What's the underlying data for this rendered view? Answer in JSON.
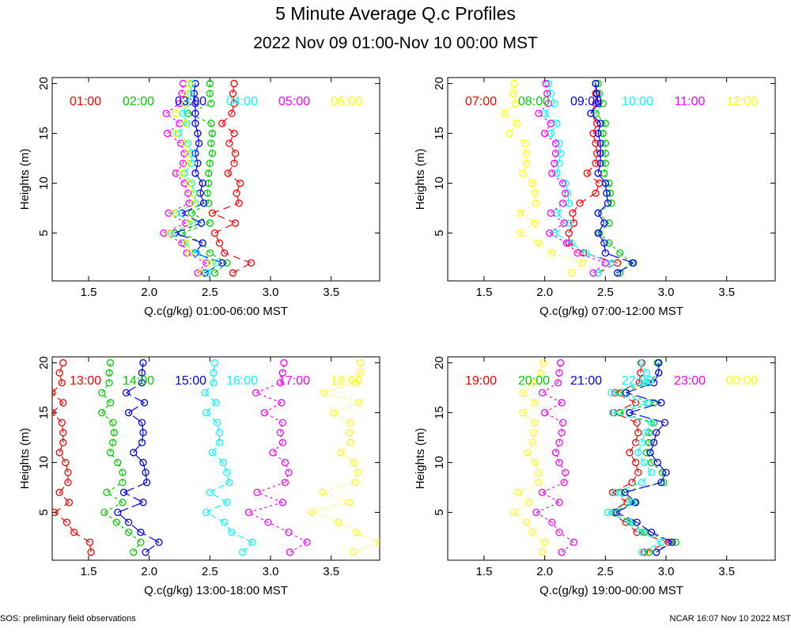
{
  "title": "5 Minute Average Q.c Profiles",
  "subtitle": "2022 Nov 09 01:00-Nov 10 00:00 MST",
  "footer": {
    "left": "SOS: preliminary field observations",
    "right": "NCAR 16:07 Nov 10 2022 MST"
  },
  "colors": [
    "#ff0000",
    "#00cc00",
    "#0000ff",
    "#00ffff",
    "#ff00ff",
    "#ffff00"
  ],
  "chart_data": [
    {
      "type": "line",
      "xlabel": "Q.c(g/kg) 01:00-06:00 MST",
      "ylabel": "Heights (m)",
      "xlim": [
        1.2,
        3.9
      ],
      "ylim": [
        0.2,
        20.6
      ],
      "xticks": [
        "1.5",
        "2.0",
        "2.5",
        "3.0",
        "3.5"
      ],
      "yticks": [
        "5",
        "10",
        "15",
        "20"
      ],
      "heights": [
        1,
        2,
        3,
        4,
        5,
        6,
        7,
        8,
        9,
        10,
        11,
        12,
        13,
        14,
        15,
        16,
        17,
        18,
        19,
        20
      ],
      "series": [
        {
          "name": "01:00",
          "values": [
            2.69,
            2.84,
            2.62,
            2.58,
            2.54,
            2.71,
            2.52,
            2.74,
            2.72,
            2.75,
            2.65,
            2.7,
            2.71,
            2.66,
            2.7,
            2.6,
            2.68,
            2.7,
            2.69,
            2.7
          ]
        },
        {
          "name": "02:00",
          "values": [
            2.54,
            2.64,
            2.5,
            2.44,
            2.27,
            2.5,
            2.35,
            2.49,
            2.48,
            2.49,
            2.49,
            2.5,
            2.52,
            2.51,
            2.52,
            2.51,
            2.32,
            2.51,
            2.5,
            2.5
          ]
        },
        {
          "name": "03:00",
          "values": [
            2.46,
            2.6,
            2.38,
            2.44,
            2.21,
            2.43,
            2.27,
            2.45,
            2.42,
            2.44,
            2.38,
            2.4,
            2.38,
            2.41,
            2.4,
            2.38,
            2.38,
            2.38,
            2.37,
            2.38
          ]
        },
        {
          "name": "04:00",
          "values": [
            2.48,
            2.55,
            2.39,
            2.29,
            2.18,
            2.36,
            2.22,
            2.38,
            2.37,
            2.35,
            2.29,
            2.35,
            2.35,
            2.32,
            2.24,
            2.31,
            2.28,
            2.31,
            2.34,
            2.35
          ]
        },
        {
          "name": "05:00",
          "values": [
            2.4,
            2.47,
            2.31,
            2.27,
            2.12,
            2.3,
            2.16,
            2.33,
            2.32,
            2.29,
            2.22,
            2.28,
            2.29,
            2.26,
            2.15,
            2.25,
            2.14,
            2.25,
            2.27,
            2.28
          ]
        },
        {
          "name": "06:00",
          "values": [
            2.42,
            2.51,
            2.33,
            2.31,
            2.17,
            2.35,
            2.2,
            2.37,
            2.36,
            2.33,
            2.27,
            2.32,
            2.32,
            2.3,
            2.22,
            2.3,
            2.22,
            2.3,
            2.31,
            2.33
          ]
        }
      ]
    },
    {
      "type": "line",
      "xlabel": "Q.c(g/kg) 07:00-12:00 MST",
      "ylabel": "Heights (m)",
      "xlim": [
        1.2,
        3.9
      ],
      "ylim": [
        0.2,
        20.6
      ],
      "xticks": [
        "1.5",
        "2.0",
        "2.5",
        "3.0",
        "3.5"
      ],
      "yticks": [
        "5",
        "10",
        "15",
        "20"
      ],
      "heights": [
        1,
        2,
        3,
        4,
        5,
        6,
        7,
        8,
        9,
        10,
        11,
        12,
        13,
        14,
        15,
        16,
        17,
        18,
        19,
        20
      ],
      "series": [
        {
          "name": "07:00",
          "values": [
            2.44,
            2.6,
            2.32,
            2.2,
            2.2,
            2.24,
            2.23,
            2.29,
            2.42,
            2.45,
            2.35,
            2.42,
            2.43,
            2.42,
            2.4,
            2.43,
            2.38,
            2.42,
            2.42,
            2.42
          ]
        },
        {
          "name": "08:00",
          "values": [
            2.62,
            2.72,
            2.62,
            2.53,
            2.45,
            2.53,
            2.44,
            2.55,
            2.54,
            2.53,
            2.49,
            2.5,
            2.5,
            2.5,
            2.48,
            2.5,
            2.42,
            2.48,
            2.45,
            2.44
          ]
        },
        {
          "name": "09:00",
          "values": [
            2.6,
            2.73,
            2.5,
            2.49,
            2.44,
            2.49,
            2.44,
            2.52,
            2.51,
            2.5,
            2.44,
            2.46,
            2.46,
            2.46,
            2.44,
            2.46,
            2.38,
            2.44,
            2.43,
            2.42
          ]
        },
        {
          "name": "10:00",
          "values": [
            2.44,
            2.55,
            2.34,
            2.22,
            2.08,
            2.2,
            2.1,
            2.2,
            2.19,
            2.17,
            2.1,
            2.12,
            2.13,
            2.12,
            2.05,
            2.1,
            2.0,
            2.08,
            2.05,
            2.03
          ]
        },
        {
          "name": "11:00",
          "values": [
            2.4,
            2.5,
            2.27,
            2.18,
            2.04,
            2.16,
            2.05,
            2.15,
            2.17,
            2.15,
            2.06,
            2.08,
            2.09,
            2.09,
            2.0,
            2.05,
            1.95,
            2.03,
            2.02,
            2.01
          ]
        },
        {
          "name": "12:00",
          "values": [
            2.22,
            2.31,
            2.06,
            1.95,
            1.8,
            1.92,
            1.8,
            1.93,
            1.92,
            1.9,
            1.82,
            1.85,
            1.85,
            1.84,
            1.71,
            1.77,
            1.67,
            1.76,
            1.74,
            1.75
          ]
        }
      ]
    },
    {
      "type": "line",
      "xlabel": "Q.c(g/kg) 13:00-18:00 MST",
      "ylabel": "Heights (m)",
      "xlim": [
        1.2,
        3.9
      ],
      "ylim": [
        0.2,
        20.6
      ],
      "xticks": [
        "1.5",
        "2.0",
        "2.5",
        "3.0",
        "3.5"
      ],
      "yticks": [
        "5",
        "10",
        "15",
        "20"
      ],
      "heights": [
        1,
        2,
        3,
        4,
        5,
        6,
        7,
        8,
        9,
        10,
        11,
        12,
        13,
        14,
        15,
        16,
        17,
        18,
        19,
        20
      ],
      "series": [
        {
          "name": "13:00",
          "values": [
            1.52,
            1.51,
            1.38,
            1.32,
            1.22,
            1.34,
            1.26,
            1.33,
            1.33,
            1.31,
            1.26,
            1.29,
            1.29,
            1.28,
            1.2,
            1.29,
            1.2,
            1.28,
            1.26,
            1.29
          ]
        },
        {
          "name": "14:00",
          "values": [
            1.87,
            1.93,
            1.83,
            1.73,
            1.63,
            1.78,
            1.65,
            1.78,
            1.78,
            1.74,
            1.68,
            1.7,
            1.71,
            1.7,
            1.61,
            1.68,
            1.61,
            1.67,
            1.67,
            1.68
          ]
        },
        {
          "name": "15:00",
          "values": [
            1.97,
            2.08,
            1.93,
            1.83,
            1.74,
            1.95,
            1.79,
            1.98,
            1.97,
            1.95,
            1.87,
            1.94,
            1.95,
            1.94,
            1.83,
            1.96,
            1.81,
            1.94,
            1.94,
            1.95
          ]
        },
        {
          "name": "16:00",
          "values": [
            2.77,
            2.85,
            2.68,
            2.62,
            2.47,
            2.64,
            2.5,
            2.66,
            2.64,
            2.61,
            2.52,
            2.58,
            2.58,
            2.56,
            2.47,
            2.55,
            2.46,
            2.53,
            2.53,
            2.54
          ]
        },
        {
          "name": "17:00",
          "values": [
            3.16,
            3.3,
            3.15,
            2.98,
            2.82,
            3.1,
            2.89,
            3.12,
            3.15,
            3.12,
            3.02,
            3.1,
            3.08,
            3.1,
            2.95,
            3.09,
            2.88,
            3.08,
            3.1,
            3.11
          ]
        },
        {
          "name": "18:00",
          "values": [
            3.68,
            3.9,
            3.71,
            3.56,
            3.34,
            3.65,
            3.43,
            3.7,
            3.72,
            3.69,
            3.58,
            3.66,
            3.65,
            3.66,
            3.52,
            3.73,
            3.44,
            3.7,
            3.74,
            3.74
          ]
        }
      ]
    },
    {
      "type": "line",
      "xlabel": "Q.c(g/kg) 19:00-00:00 MST",
      "ylabel": "Heights (m)",
      "xlim": [
        1.2,
        3.9
      ],
      "ylim": [
        0.2,
        20.6
      ],
      "xticks": [
        "1.5",
        "2.0",
        "2.5",
        "3.0",
        "3.5"
      ],
      "yticks": [
        "5",
        "10",
        "15",
        "20"
      ],
      "heights": [
        1,
        2,
        3,
        4,
        5,
        6,
        7,
        8,
        9,
        10,
        11,
        12,
        13,
        14,
        15,
        16,
        17,
        18,
        19,
        20
      ],
      "series": [
        {
          "name": "19:00",
          "values": [
            2.82,
            3.02,
            2.76,
            2.67,
            2.52,
            2.68,
            2.56,
            2.72,
            2.77,
            2.75,
            2.7,
            2.75,
            2.77,
            2.76,
            2.57,
            2.75,
            2.58,
            2.78,
            2.79,
            2.8
          ]
        },
        {
          "name": "20:00",
          "values": [
            2.86,
            3.08,
            2.82,
            2.72,
            2.57,
            2.74,
            2.63,
            2.98,
            2.97,
            2.88,
            2.84,
            2.86,
            2.86,
            2.9,
            2.62,
            2.9,
            2.62,
            2.85,
            2.94,
            2.93
          ]
        },
        {
          "name": "21:00",
          "values": [
            2.92,
            3.05,
            2.88,
            2.76,
            2.59,
            2.75,
            2.66,
            2.96,
            3.0,
            2.93,
            2.87,
            2.9,
            2.92,
            2.99,
            2.7,
            2.96,
            2.67,
            2.9,
            2.94,
            2.94
          ]
        },
        {
          "name": "22:00",
          "values": [
            2.8,
            2.96,
            2.8,
            2.7,
            2.52,
            2.72,
            2.58,
            2.8,
            2.88,
            2.82,
            2.77,
            2.8,
            2.83,
            2.88,
            2.56,
            2.85,
            2.55,
            2.82,
            2.84,
            2.79
          ]
        },
        {
          "name": "23:00",
          "values": [
            2.14,
            2.24,
            2.12,
            2.06,
            1.93,
            2.12,
            1.98,
            2.16,
            2.17,
            2.12,
            2.09,
            2.12,
            2.14,
            2.15,
            2.0,
            2.14,
            1.98,
            2.11,
            2.12,
            2.13
          ]
        },
        {
          "name": "00:00",
          "values": [
            1.98,
            2.0,
            1.9,
            1.85,
            1.75,
            1.87,
            1.78,
            1.95,
            1.95,
            1.92,
            1.86,
            1.9,
            1.91,
            1.92,
            1.82,
            1.92,
            1.82,
            1.9,
            1.97,
            1.99
          ]
        }
      ]
    }
  ]
}
